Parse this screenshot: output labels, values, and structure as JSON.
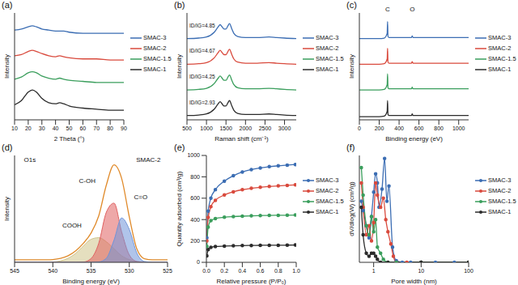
{
  "chart_data": [
    {
      "type": "line",
      "title": "(a)",
      "x_label": "2 Theta (°)",
      "y_label": "Intensity",
      "tick_labels": "x",
      "legend": "right",
      "xlim": [
        10,
        90
      ],
      "xticks": [
        10,
        20,
        30,
        40,
        50,
        60,
        70,
        80,
        90
      ],
      "ylim": [
        0,
        100
      ],
      "x": [
        10,
        15,
        20,
        23,
        26,
        30,
        35,
        40,
        43,
        46,
        50,
        60,
        70,
        80,
        90
      ],
      "series": [
        {
          "name": "SMAC-3",
          "color": "#3b6db3",
          "values": [
            84,
            85,
            87,
            88,
            87,
            85,
            84,
            83,
            83,
            83,
            82,
            81,
            81,
            81,
            81
          ]
        },
        {
          "name": "SMAC-2",
          "color": "#d94a3d",
          "values": [
            60,
            61,
            64,
            65,
            64,
            62,
            60,
            59,
            60,
            59,
            58,
            57,
            57,
            56,
            56
          ]
        },
        {
          "name": "SMAC-1.5",
          "color": "#3a9e5c",
          "values": [
            38,
            40,
            44,
            45,
            44,
            41,
            39,
            38,
            39,
            38,
            37,
            36,
            35,
            35,
            35
          ]
        },
        {
          "name": "SMAC-1",
          "color": "#2b2b2b",
          "values": [
            14,
            18,
            26,
            28,
            26,
            20,
            16,
            15,
            16,
            15,
            13,
            11,
            10,
            9,
            9
          ]
        }
      ]
    },
    {
      "type": "line",
      "title": "(b)",
      "x_label": "Raman shift (cm⁻¹)",
      "y_label": "Intensity",
      "tick_labels": "x",
      "legend": "right",
      "xlim": [
        500,
        3300
      ],
      "xticks": [
        500,
        1000,
        1500,
        2000,
        2500,
        3000
      ],
      "ylim": [
        0,
        100
      ],
      "x": [
        500,
        800,
        1000,
        1200,
        1300,
        1350,
        1400,
        1450,
        1500,
        1550,
        1590,
        1650,
        1700,
        1800,
        2000,
        2300,
        2600,
        2800,
        3000,
        3300
      ],
      "series": [
        {
          "name": "SMAC-3",
          "color": "#3b6db3",
          "annotation": "ID/IG=4.85",
          "values": [
            76,
            76.5,
            77.5,
            82,
            87,
            89,
            87,
            85,
            85,
            88,
            90,
            85,
            81,
            78,
            77,
            77,
            77.5,
            77,
            76.5,
            76
          ]
        },
        {
          "name": "SMAC-2",
          "color": "#d94a3d",
          "annotation": "ID/IG=4.67",
          "values": [
            52,
            52.5,
            53.5,
            58,
            63,
            65,
            63,
            61,
            61,
            64,
            66,
            61,
            57,
            54,
            53,
            53,
            53.5,
            53,
            52.5,
            52
          ]
        },
        {
          "name": "SMAC-1.5",
          "color": "#3a9e5c",
          "annotation": "ID/IG=4.25",
          "values": [
            28,
            28.5,
            29.5,
            34,
            39,
            41,
            39,
            37,
            37,
            40,
            42,
            37,
            33,
            30,
            29,
            29,
            29.5,
            29,
            28.5,
            28
          ]
        },
        {
          "name": "SMAC-1",
          "color": "#2b2b2b",
          "annotation": "ID/IG=2.93",
          "values": [
            4,
            4.5,
            5.5,
            10,
            15,
            17,
            15,
            13,
            13,
            16,
            18,
            13,
            9,
            6,
            5,
            5,
            5.5,
            5,
            4.5,
            4
          ]
        }
      ]
    },
    {
      "type": "line",
      "title": "(c)",
      "x_label": "Binding energy (eV)",
      "y_label": "Intensity",
      "tick_labels": "x",
      "legend": "right",
      "xlim": [
        0,
        1100
      ],
      "xticks": [
        0,
        200,
        400,
        600,
        800,
        1000
      ],
      "ylim": [
        0,
        100
      ],
      "x": [
        0,
        100,
        200,
        250,
        280,
        284,
        288,
        300,
        400,
        500,
        525,
        532,
        540,
        600,
        800,
        1000,
        1100
      ],
      "annotations": [
        {
          "text": "C",
          "x": 284,
          "y": 100
        },
        {
          "text": "O",
          "x": 532,
          "y": 100
        }
      ],
      "series": [
        {
          "name": "SMAC-3",
          "color": "#3b6db3",
          "values": [
            76,
            76,
            76,
            76.5,
            81,
            92,
            78,
            77,
            77,
            77,
            77,
            78.5,
            77,
            77,
            77,
            77,
            77
          ]
        },
        {
          "name": "SMAC-2",
          "color": "#d94a3d",
          "values": [
            52,
            52,
            52,
            52.5,
            57,
            67,
            54,
            53,
            53,
            53,
            53,
            54.5,
            53,
            53,
            53,
            53,
            53
          ]
        },
        {
          "name": "SMAC-1.5",
          "color": "#3a9e5c",
          "values": [
            28,
            28,
            28,
            28.5,
            33,
            43,
            30,
            29,
            29,
            29,
            29,
            30.5,
            29,
            29,
            29,
            29,
            29
          ]
        },
        {
          "name": "SMAC-1",
          "color": "#2b2b2b",
          "values": [
            3,
            3,
            3,
            3.5,
            8,
            18,
            5,
            4,
            4,
            4,
            4,
            5.5,
            4,
            4,
            4,
            4,
            4
          ]
        }
      ]
    },
    {
      "type": "line",
      "title": "(d)",
      "x_label": "Binding energy (eV)",
      "y_label": "Intensity",
      "tick_labels": "x",
      "xlim": [
        545,
        525
      ],
      "xticks": [
        545,
        540,
        535,
        530,
        525
      ],
      "ylim": [
        0,
        130
      ],
      "x": [
        545,
        544,
        543,
        542,
        541,
        540,
        539,
        538,
        537,
        536,
        535,
        534,
        533,
        532,
        531,
        530,
        529,
        528,
        527,
        526,
        525
      ],
      "annotations": [
        {
          "text": "O1s",
          "x": 543,
          "y": 120
        },
        {
          "text": "SMAC-2",
          "x": 527.5,
          "y": 120
        },
        {
          "text": "COOH",
          "x": 537.5,
          "y": 40
        },
        {
          "text": "C-OH",
          "x": 535.5,
          "y": 95
        },
        {
          "text": "C=O",
          "x": 528.5,
          "y": 75
        }
      ],
      "series": [
        {
          "type": "area",
          "color": "#cfc48a",
          "values": [
            0,
            0,
            0,
            0,
            0.1,
            0.4,
            1.7,
            5,
            11,
            20,
            28,
            30,
            25,
            16.5,
            8,
            3.3,
            1,
            0.3,
            0,
            0,
            0
          ]
        },
        {
          "type": "area",
          "color": "#e06060",
          "values": [
            0,
            0,
            0,
            0,
            0,
            0,
            0,
            0,
            0,
            0.3,
            4.6,
            23,
            61,
            72,
            37,
            9,
            1,
            0,
            0,
            0,
            0
          ]
        },
        {
          "type": "area",
          "color": "#6f94d8",
          "values": [
            0,
            0,
            0,
            0,
            0,
            0,
            0,
            0,
            0,
            0,
            0,
            0.4,
            5,
            27,
            54,
            40,
            11,
            1,
            0,
            0,
            0
          ]
        },
        {
          "type": "line",
          "color": "#e08a2a",
          "values": [
            3,
            3,
            3,
            3,
            3.1,
            3.4,
            4.7,
            8,
            14,
            23.3,
            35.6,
            56.4,
            94,
            118.5,
            102,
            55.3,
            16,
            4.3,
            3,
            3,
            3
          ]
        }
      ]
    },
    {
      "type": "line",
      "title": "(e)",
      "x_label": "Relative pressure (P/P₀)",
      "y_label": "Quantity adsorbed (cm³/g)",
      "legend": "right",
      "xlim": [
        0,
        1
      ],
      "xticks": [
        {
          "value": 0,
          "label": "0.0"
        },
        0.2,
        0.4,
        0.6,
        0.8,
        {
          "value": 1,
          "label": "1.0"
        }
      ],
      "ylim": [
        0,
        1000
      ],
      "yticks": [
        0,
        200,
        400,
        600,
        800,
        1000
      ],
      "x": [
        0.005,
        0.02,
        0.05,
        0.1,
        0.2,
        0.3,
        0.4,
        0.5,
        0.6,
        0.7,
        0.8,
        0.9,
        0.99
      ],
      "series": [
        {
          "name": "SMAC-3",
          "color": "#3b6db3",
          "marker": "circle",
          "values": [
            230,
            480,
            600,
            680,
            760,
            810,
            845,
            868,
            883,
            895,
            903,
            910,
            915
          ]
        },
        {
          "name": "SMAC-2",
          "color": "#d94a3d",
          "marker": "circle",
          "values": [
            200,
            420,
            520,
            580,
            630,
            660,
            680,
            693,
            702,
            710,
            715,
            720,
            725
          ]
        },
        {
          "name": "SMAC-1.5",
          "color": "#3a9e5c",
          "marker": "circle",
          "values": [
            150,
            330,
            390,
            410,
            422,
            428,
            432,
            435,
            437,
            439,
            440,
            441,
            443
          ]
        },
        {
          "name": "SMAC-1",
          "color": "#2b2b2b",
          "marker": "circle",
          "values": [
            60,
            120,
            140,
            148,
            152,
            155,
            157,
            158,
            159,
            160,
            160,
            161,
            162
          ]
        }
      ]
    },
    {
      "type": "line",
      "title": "(f)",
      "x_label": "Pore width (nm)",
      "y_label": "dV/dlog(W) (cm³/g)",
      "tick_labels": "x",
      "legend": "right",
      "log": "x",
      "xlim": [
        0.5,
        100
      ],
      "xticks": [
        1,
        10,
        100
      ],
      "ylim": [
        0,
        3.5
      ],
      "series": [
        {
          "name": "SMAC-3",
          "color": "#3b6db3",
          "marker": "circle",
          "x": [
            0.55,
            0.6,
            0.7,
            0.8,
            0.9,
            1.0,
            1.1,
            1.2,
            1.3,
            1.5,
            1.7,
            1.9,
            2.1,
            2.5,
            3,
            4,
            6,
            10,
            20,
            50,
            100
          ],
          "values": [
            2.0,
            1.7,
            1.2,
            0.8,
            1.5,
            2.3,
            2.9,
            2.6,
            1.8,
            2.4,
            3.4,
            2.0,
            2.5,
            0.5,
            0.05,
            0,
            0,
            0,
            0,
            0,
            0
          ]
        },
        {
          "name": "SMAC-2",
          "color": "#d94a3d",
          "marker": "circle",
          "x": [
            0.55,
            0.6,
            0.7,
            0.8,
            0.9,
            1.0,
            1.1,
            1.2,
            1.4,
            1.6,
            1.8,
            2.0,
            2.3,
            2.6,
            3,
            5,
            10,
            100
          ],
          "values": [
            2.6,
            1.8,
            0.9,
            1.2,
            0.7,
            1.3,
            2.6,
            2.2,
            1.8,
            2.1,
            1.4,
            1.0,
            0.6,
            0.2,
            0,
            0,
            0,
            0
          ]
        },
        {
          "name": "SMAC-1.5",
          "color": "#3a9e5c",
          "marker": "circle",
          "x": [
            0.55,
            0.6,
            0.7,
            0.8,
            0.9,
            1.0,
            1.1,
            1.2,
            1.4,
            1.6,
            2.0,
            3,
            10,
            100
          ],
          "values": [
            3.1,
            2.2,
            1.2,
            0.9,
            1.5,
            1.0,
            1.4,
            0.5,
            0.3,
            0.1,
            0,
            0,
            0,
            0
          ]
        },
        {
          "name": "SMAC-1",
          "color": "#2b2b2b",
          "marker": "circle",
          "x": [
            0.55,
            0.6,
            0.7,
            0.8,
            0.9,
            1.0,
            1.1,
            1.2,
            1.4,
            2,
            10,
            100
          ],
          "values": [
            1.8,
            0.9,
            0.3,
            0.2,
            0.3,
            0.3,
            0.2,
            0.1,
            0,
            0,
            0,
            0
          ]
        }
      ]
    }
  ]
}
